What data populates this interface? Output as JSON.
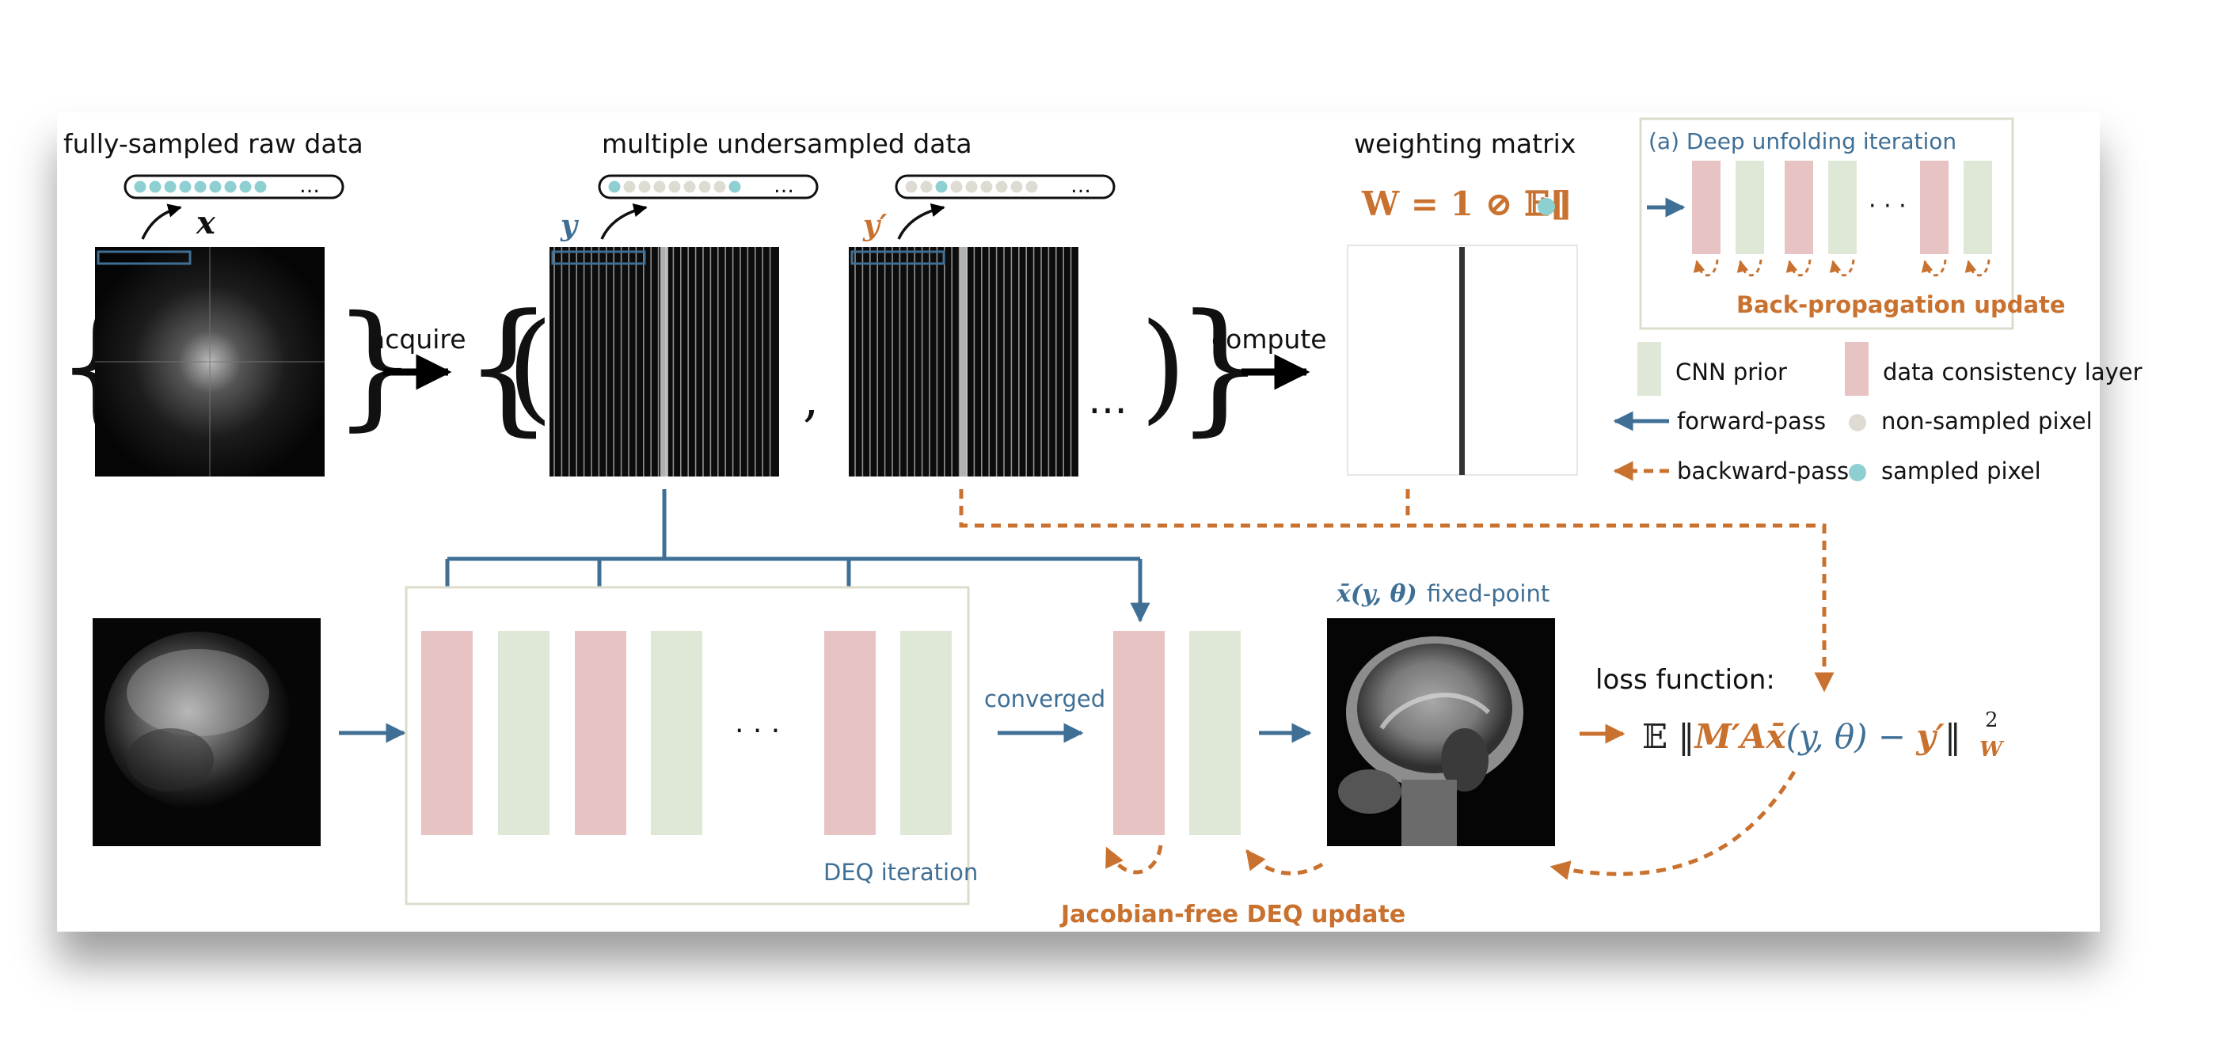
{
  "top": {
    "fully_sampled_label": "fully-sampled raw data",
    "undersampled_label": "multiple undersampled data",
    "weighting_label": "weighting matrix",
    "acquire": "acquire",
    "compute": "compute",
    "x_symbol": "x",
    "y_symbol": "y",
    "yprime_symbol": "y′",
    "weight_formula": "W = 1 ⊘ 𝔼[",
    "weight_formula_close": "]",
    "ellipsis": "…",
    "comma": ","
  },
  "inset": {
    "title": "(a) Deep unfolding iteration",
    "backprop": "Back-propagation update",
    "ellipsis": "· · ·"
  },
  "legend": {
    "cnn_prior": "CNN prior",
    "data_consistency": "data consistency layer",
    "forward_pass": "forward-pass",
    "non_sampled": "non-sampled pixel",
    "backward_pass": "backward-pass",
    "sampled": "sampled pixel"
  },
  "bottom": {
    "deq_iteration": "DEQ iteration",
    "converged": "converged",
    "fixed_point_symbol": "x̄(y, θ)",
    "fixed_point_text": "fixed-point",
    "loss_label": "loss function:",
    "loss_prefix": "𝔼 ‖",
    "loss_op": "M′Ax̄",
    "loss_args": "(y, θ) − ",
    "loss_yprime": "y′",
    "loss_close": "‖",
    "loss_sup": "2",
    "loss_sub": "W",
    "jacobian_free": "Jacobian-free DEQ update",
    "ellipsis": "· · ·"
  },
  "masks": {
    "x": [
      1,
      1,
      1,
      1,
      1,
      1,
      1,
      1,
      1
    ],
    "y": [
      1,
      0,
      0,
      0,
      0,
      0,
      0,
      0,
      1
    ],
    "yprime": [
      0,
      0,
      1,
      0,
      0,
      0,
      0,
      0,
      0
    ]
  },
  "colors": {
    "blue": "#3f6f95",
    "orange": "#c9712e",
    "cnn_prior": "#dfe8d6",
    "data_consistency": "#e8c3c3",
    "sampled": "#8ecfd2",
    "non_sampled": "#dedcd2"
  }
}
